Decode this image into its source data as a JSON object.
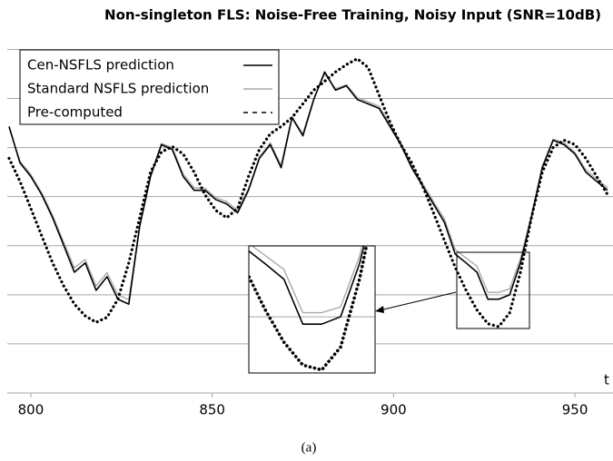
{
  "chart_data": {
    "type": "line",
    "title": "Non-singleton FLS: Noise-Free Training, Noisy Input (SNR=10dB)",
    "x_label": "t",
    "caption": "(a)",
    "x": [
      794,
      797,
      800,
      803,
      806,
      809,
      812,
      815,
      818,
      821,
      824,
      827,
      830,
      833,
      836,
      839,
      842,
      845,
      848,
      851,
      854,
      857,
      860,
      863,
      866,
      869,
      872,
      875,
      878,
      881,
      884,
      887,
      890,
      893,
      896,
      899,
      902,
      905,
      908,
      911,
      914,
      917,
      920,
      923,
      926,
      929,
      932,
      935,
      938,
      941,
      944,
      947,
      950,
      953,
      956,
      959
    ],
    "xlim": [
      793.5,
      960.5
    ],
    "xticks": [
      800,
      850,
      900,
      950
    ],
    "ylim": [
      0,
      7.6
    ],
    "yticks": [
      0,
      1,
      2,
      3,
      4,
      5,
      6,
      7
    ],
    "grid": true,
    "legend": "top-left",
    "series": [
      {
        "name": "Cen-NSFLS prediction",
        "color": "#000000",
        "style": "solid",
        "values": [
          5.43,
          4.69,
          4.41,
          4.04,
          3.57,
          3.02,
          2.46,
          2.65,
          2.09,
          2.37,
          1.91,
          1.81,
          3.39,
          4.41,
          5.06,
          4.96,
          4.41,
          4.13,
          4.13,
          3.94,
          3.85,
          3.67,
          4.13,
          4.78,
          5.06,
          4.59,
          5.61,
          5.24,
          5.98,
          6.54,
          6.17,
          6.26,
          5.98,
          5.89,
          5.8,
          5.43,
          5.06,
          4.59,
          4.22,
          3.85,
          3.48,
          2.83,
          2.65,
          2.46,
          1.91,
          1.91,
          2.0,
          2.65,
          3.57,
          4.59,
          5.15,
          5.06,
          4.87,
          4.5,
          4.31,
          4.13
        ]
      },
      {
        "name": "Standard NSFLS prediction",
        "color": "#aaaaaa",
        "style": "solid",
        "values": [
          5.4,
          4.72,
          4.45,
          4.08,
          3.62,
          3.08,
          2.55,
          2.72,
          2.18,
          2.45,
          2.0,
          1.9,
          3.42,
          4.43,
          5.08,
          5.0,
          4.46,
          4.18,
          4.17,
          3.98,
          3.9,
          3.72,
          4.16,
          4.8,
          5.1,
          4.64,
          5.63,
          5.28,
          6.0,
          6.5,
          6.2,
          6.28,
          6.02,
          5.93,
          5.84,
          5.48,
          5.1,
          4.64,
          4.27,
          3.9,
          3.55,
          2.92,
          2.75,
          2.58,
          2.05,
          2.05,
          2.12,
          2.74,
          3.62,
          4.62,
          5.17,
          5.1,
          4.9,
          4.55,
          4.36,
          4.18
        ]
      },
      {
        "name": "Pre-computed",
        "color": "#000000",
        "style": "dotted",
        "values": [
          4.78,
          4.31,
          3.76,
          3.2,
          2.65,
          2.19,
          1.81,
          1.57,
          1.44,
          1.54,
          1.91,
          2.65,
          3.57,
          4.5,
          4.91,
          5.02,
          4.87,
          4.5,
          4.04,
          3.72,
          3.57,
          3.76,
          4.41,
          4.96,
          5.28,
          5.43,
          5.61,
          5.89,
          6.17,
          6.35,
          6.54,
          6.69,
          6.81,
          6.63,
          6.07,
          5.52,
          5.06,
          4.69,
          4.22,
          3.67,
          3.11,
          2.56,
          2.09,
          1.69,
          1.41,
          1.35,
          1.63,
          2.46,
          3.57,
          4.5,
          5.0,
          5.15,
          5.06,
          4.78,
          4.41,
          4.04
        ]
      }
    ]
  }
}
